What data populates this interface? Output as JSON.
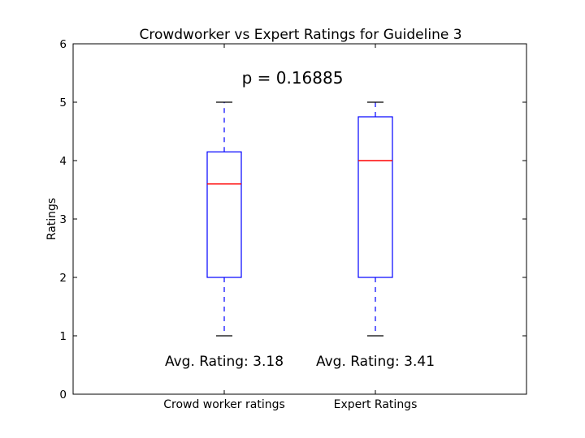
{
  "chart_data": {
    "type": "box",
    "title": "Crowdworker vs Expert Ratings for Guideline 3",
    "xlabel": "",
    "ylabel": "Ratings",
    "ylim": [
      0,
      6
    ],
    "yticks": [
      "0",
      "1",
      "2",
      "3",
      "4",
      "5",
      "6"
    ],
    "grid": false,
    "categories": [
      "Crowd worker ratings",
      "Expert Ratings"
    ],
    "boxes": [
      {
        "category": "Crowd worker ratings",
        "whisker_low": 1,
        "q1": 2,
        "median": 3.6,
        "q3": 4.15,
        "whisker_high": 5
      },
      {
        "category": "Expert Ratings",
        "whisker_low": 1,
        "q1": 2,
        "median": 4,
        "q3": 4.75,
        "whisker_high": 5
      }
    ],
    "annotations": {
      "p_value": "p = 0.16885",
      "averages": [
        "Avg. Rating: 3.18",
        "Avg. Rating: 3.41"
      ]
    },
    "colors": {
      "box": "#0000ff",
      "median": "#ff0000",
      "cap": "#000000"
    }
  }
}
